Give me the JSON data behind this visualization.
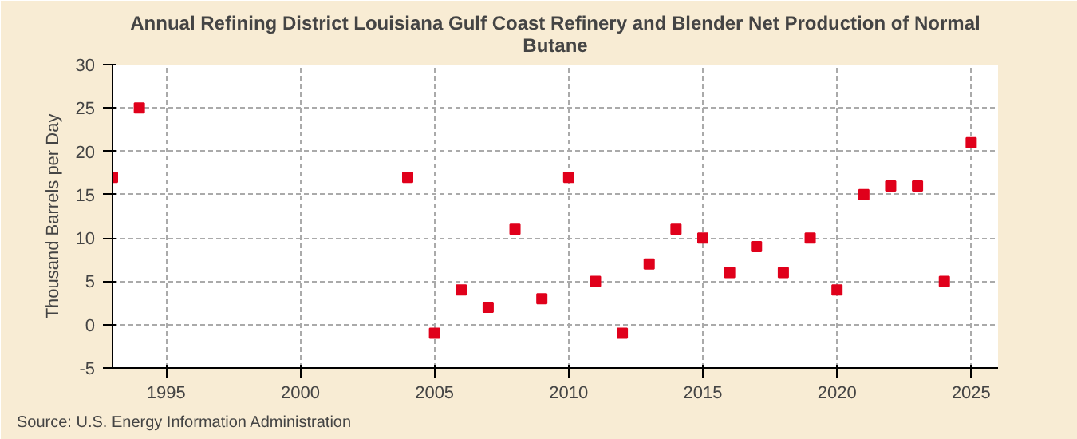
{
  "chart_data": {
    "type": "scatter",
    "title": "Annual Refining District Louisiana Gulf Coast Refinery and Blender Net Production of Normal Butane",
    "ylabel": "Thousand Barrels per Day",
    "x": [
      1993,
      1994,
      2004,
      2005,
      2006,
      2007,
      2008,
      2009,
      2010,
      2011,
      2012,
      2013,
      2014,
      2015,
      2016,
      2017,
      2018,
      2019,
      2020,
      2021,
      2022,
      2023,
      2024,
      2025
    ],
    "series": [
      {
        "color": "#e0001b",
        "values": [
          17,
          25,
          17,
          -1,
          4,
          2,
          11,
          3,
          17,
          5,
          -1,
          7,
          11,
          10,
          6,
          9,
          6,
          10,
          4,
          15,
          16,
          16,
          5,
          21
        ]
      }
    ],
    "xlim": [
      1993,
      2026
    ],
    "xticks": [
      1995,
      2000,
      2005,
      2010,
      2015,
      2020,
      2025
    ],
    "ylim": [
      -5,
      30
    ],
    "yticks": [
      -5,
      0,
      5,
      10,
      15,
      20,
      25,
      30
    ],
    "grid": true,
    "marker": "square",
    "annotations": [
      "Source: U.S. Energy Information Administration"
    ]
  }
}
